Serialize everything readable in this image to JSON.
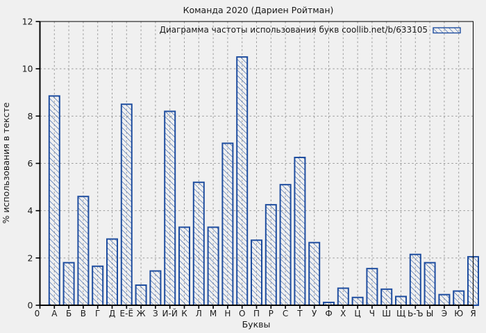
{
  "window": {
    "background_color": "#f0f0f0"
  },
  "chart_data": {
    "type": "bar",
    "title": "Команда 2020 (Дариен Ройтман)",
    "legend": "Диаграмма частоты использования букв coollib.net/b/633105",
    "legend_position": "top-right-inside",
    "xlabel": "Буквы",
    "ylabel": "% использования в тексте",
    "origin_tick_label": "0",
    "categories": [
      "А",
      "Б",
      "В",
      "Г",
      "Д",
      "Е-Ё",
      "Ж",
      "З",
      "И-Й",
      "К",
      "Л",
      "М",
      "Н",
      "О",
      "П",
      "Р",
      "С",
      "Т",
      "У",
      "Ф",
      "Х",
      "Ц",
      "Ч",
      "Ш",
      "Щ",
      "Ь-Ъ",
      "Ы",
      "Э",
      "Ю",
      "Я"
    ],
    "values": [
      8.85,
      1.8,
      4.6,
      1.65,
      2.8,
      8.5,
      0.85,
      1.45,
      8.2,
      3.3,
      5.2,
      3.3,
      6.85,
      10.5,
      2.75,
      4.25,
      5.1,
      6.25,
      2.65,
      0.12,
      0.72,
      0.33,
      1.55,
      0.68,
      0.37,
      2.15,
      1.8,
      0.45,
      0.6,
      2.05
    ],
    "ylim": [
      0,
      12
    ],
    "yticks": [
      0,
      2,
      4,
      6,
      8,
      10,
      12
    ],
    "grid": true,
    "grid_style": "dashed",
    "hatch": "diagonal-backslash",
    "colors": {
      "bar": "#1e4d9f",
      "grid": "#9a9a9a",
      "frame": "#000000",
      "background": "#f0f0f0",
      "text": "#1a1a1a"
    }
  }
}
